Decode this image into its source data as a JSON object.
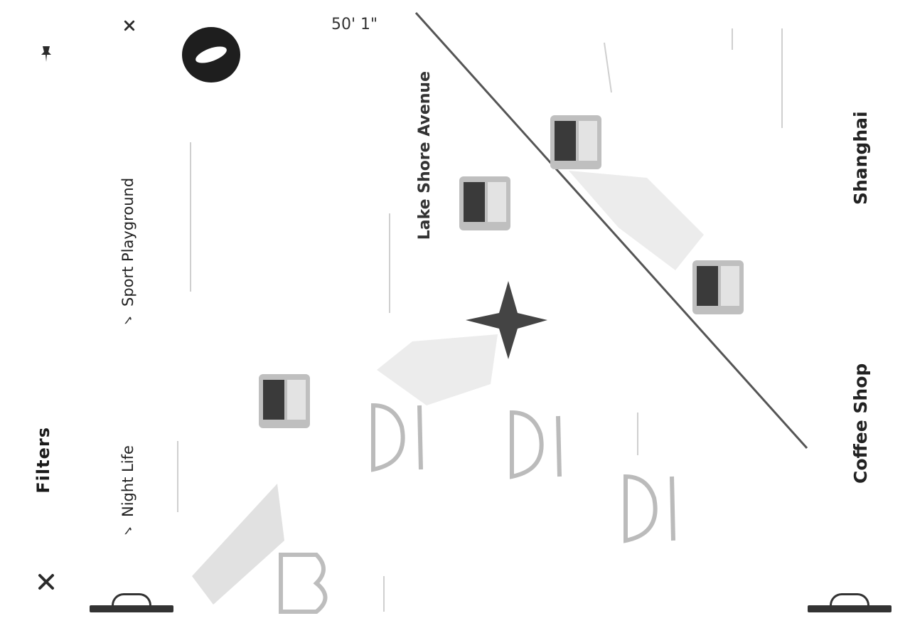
{
  "toolbar": {
    "icons": [
      "pin-icon",
      "close-icon"
    ],
    "filters_label": "Filters"
  },
  "toggles": [
    {
      "label": "Night Life",
      "checked": true
    },
    {
      "label": "Sport Playground",
      "checked": true
    }
  ],
  "map": {
    "scale_text": "50' 1\"",
    "road_label": "Lake Shore Avenue",
    "side_labels": {
      "top": "Shanghai",
      "bottom": "Coffee Shop"
    },
    "icons": [
      "camera-icon",
      "star-icon",
      "park-bench-icon"
    ]
  },
  "colors": {
    "icon_fill": "#3a3a3a",
    "road": "#555555",
    "brand": "#1e1e1e"
  }
}
